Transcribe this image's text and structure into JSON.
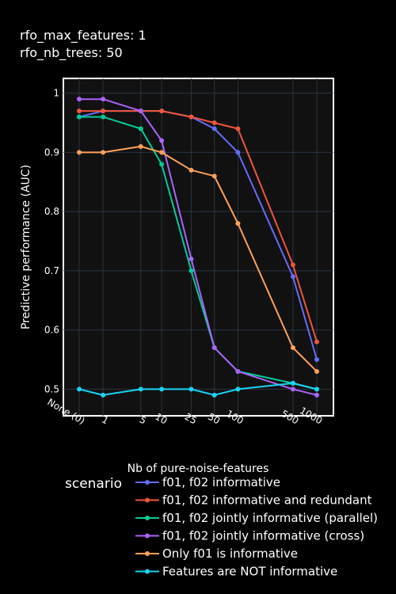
{
  "chart_data": {
    "type": "line",
    "title_lines": [
      "rfo_max_features: 1",
      "rfo_nb_trees: 50"
    ],
    "xlabel": "Nb of pure-noise-features",
    "ylabel": "Predictive performance (AUC)",
    "x_scale": "log(1+n)",
    "x": [
      0,
      1,
      5,
      10,
      25,
      50,
      100,
      500,
      1000
    ],
    "x_tick_labels": [
      "None (0)",
      "1",
      "5",
      "10",
      "25",
      "50",
      "100",
      "500",
      "1000"
    ],
    "ylim": [
      0.455,
      1.025
    ],
    "y_ticks": [
      0.5,
      0.6,
      0.7,
      0.8,
      0.9,
      1
    ],
    "y_tick_labels": [
      "0.5",
      "0.6",
      "0.7",
      "0.8",
      "0.9",
      "1"
    ],
    "grid": true,
    "legend_title": "scenario",
    "legend_position": "bottom",
    "series": [
      {
        "name": "f01, f02 informative",
        "color": "#636efa",
        "values": [
          0.96,
          0.97,
          0.97,
          0.97,
          0.96,
          0.94,
          0.9,
          0.69,
          0.55
        ]
      },
      {
        "name": "f01, f02 informative and redundant",
        "color": "#ef553b",
        "values": [
          0.97,
          0.97,
          0.97,
          0.97,
          0.96,
          0.95,
          0.94,
          0.71,
          0.58
        ]
      },
      {
        "name": "f01, f02 jointly informative (parallel)",
        "color": "#00cc96",
        "values": [
          0.96,
          0.96,
          0.94,
          0.88,
          0.7,
          0.57,
          0.53,
          0.51,
          0.5
        ]
      },
      {
        "name": "f01, f02 jointly informative (cross)",
        "color": "#ab63fa",
        "values": [
          0.99,
          0.99,
          0.97,
          0.92,
          0.72,
          0.57,
          0.53,
          0.5,
          0.49
        ]
      },
      {
        "name": "Only f01 is informative",
        "color": "#ffa15a",
        "values": [
          0.9,
          0.9,
          0.91,
          0.9,
          0.87,
          0.86,
          0.78,
          0.57,
          0.53
        ]
      },
      {
        "name": "Features are NOT informative",
        "color": "#19d3f3",
        "values": [
          0.5,
          0.49,
          0.5,
          0.5,
          0.5,
          0.49,
          0.5,
          0.51,
          0.5
        ]
      }
    ]
  }
}
